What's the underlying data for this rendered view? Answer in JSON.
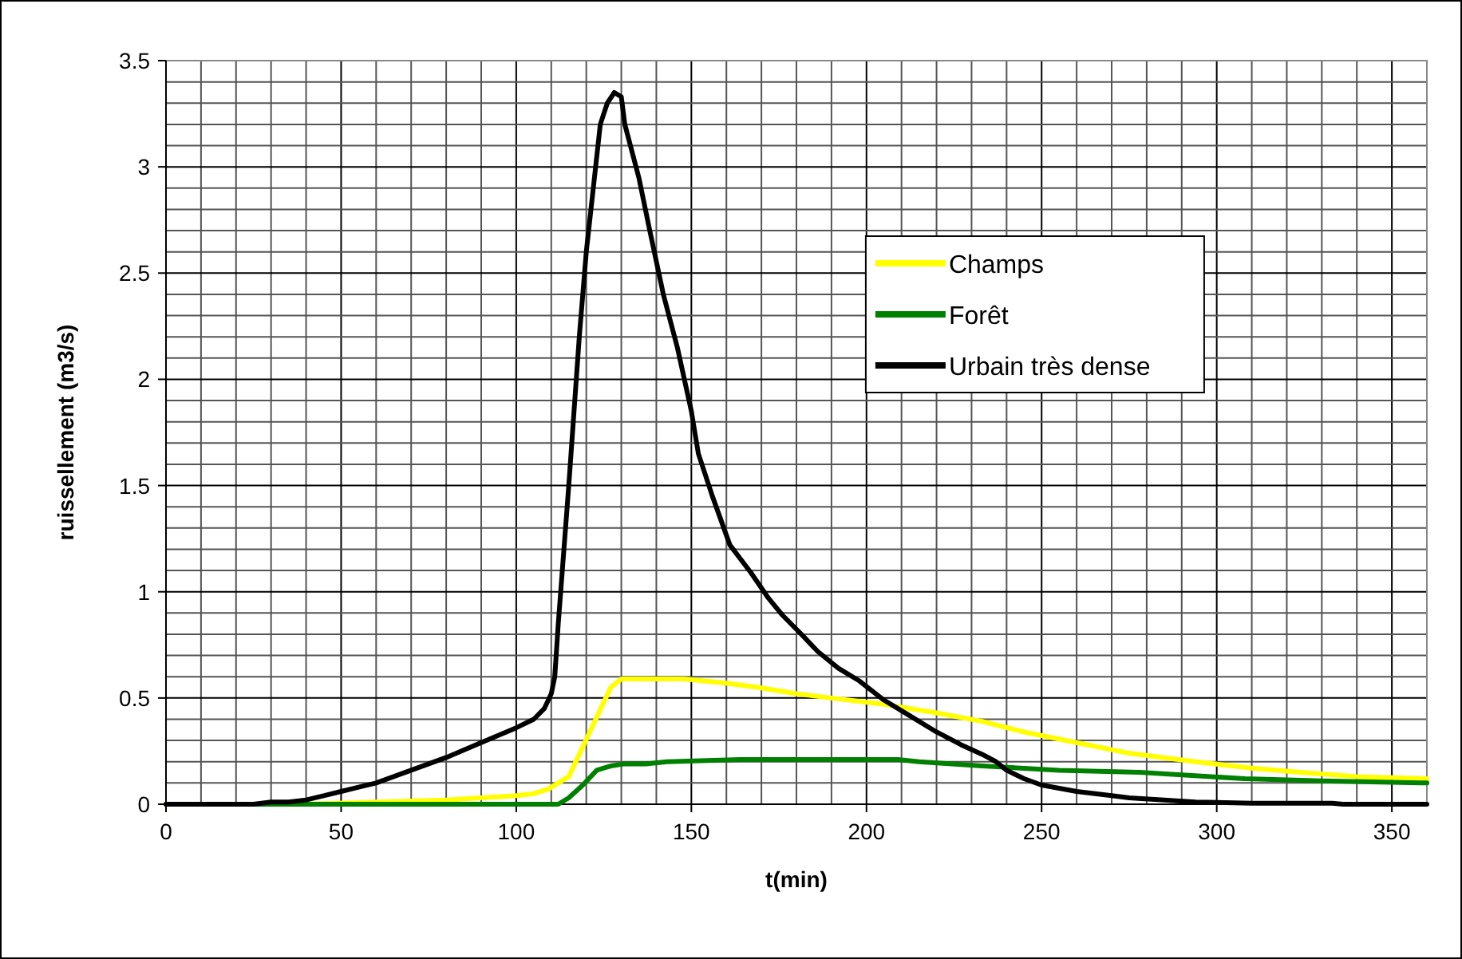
{
  "chart_data": {
    "type": "line",
    "xlabel": "t(min)",
    "ylabel": "ruissellement (m3/s)",
    "xlim": [
      0,
      360
    ],
    "ylim": [
      0,
      3.5
    ],
    "xticks": [
      0,
      {
        "value": 10,
        "label": null
      },
      {
        "value": 20,
        "label": null
      },
      {
        "value": 30,
        "label": null
      },
      {
        "value": 40,
        "label": null
      },
      50,
      {
        "value": 60,
        "label": null
      },
      {
        "value": 70,
        "label": null
      },
      {
        "value": 80,
        "label": null
      },
      {
        "value": 90,
        "label": null
      },
      100,
      {
        "value": 110,
        "label": null
      },
      {
        "value": 120,
        "label": null
      },
      {
        "value": 130,
        "label": null
      },
      {
        "value": 140,
        "label": null
      },
      150,
      {
        "value": 160,
        "label": null
      },
      {
        "value": 170,
        "label": null
      },
      {
        "value": 180,
        "label": null
      },
      {
        "value": 190,
        "label": null
      },
      200,
      {
        "value": 210,
        "label": null
      },
      {
        "value": 220,
        "label": null
      },
      {
        "value": 230,
        "label": null
      },
      {
        "value": 240,
        "label": null
      },
      250,
      {
        "value": 260,
        "label": null
      },
      {
        "value": 270,
        "label": null
      },
      {
        "value": 280,
        "label": null
      },
      {
        "value": 290,
        "label": null
      },
      300,
      {
        "value": 310,
        "label": null
      },
      {
        "value": 320,
        "label": null
      },
      {
        "value": 330,
        "label": null
      },
      {
        "value": 340,
        "label": null
      },
      350,
      {
        "value": 360,
        "label": null
      }
    ],
    "yticks": [
      0,
      {
        "value": 0.1,
        "label": null
      },
      {
        "value": 0.2,
        "label": null
      },
      {
        "value": 0.3,
        "label": null
      },
      {
        "value": 0.4,
        "label": null
      },
      0.5,
      {
        "value": 0.6,
        "label": null
      },
      {
        "value": 0.7,
        "label": null
      },
      {
        "value": 0.8,
        "label": null
      },
      {
        "value": 0.9,
        "label": null
      },
      1,
      {
        "value": 1.1,
        "label": null
      },
      {
        "value": 1.2,
        "label": null
      },
      {
        "value": 1.3,
        "label": null
      },
      {
        "value": 1.4,
        "label": null
      },
      1.5,
      {
        "value": 1.6,
        "label": null
      },
      {
        "value": 1.7,
        "label": null
      },
      {
        "value": 1.8,
        "label": null
      },
      {
        "value": 1.9,
        "label": null
      },
      2,
      {
        "value": 2.1,
        "label": null
      },
      {
        "value": 2.2,
        "label": null
      },
      {
        "value": 2.3,
        "label": null
      },
      {
        "value": 2.4,
        "label": null
      },
      2.5,
      {
        "value": 2.6,
        "label": null
      },
      {
        "value": 2.7,
        "label": null
      },
      {
        "value": 2.8,
        "label": null
      },
      {
        "value": 2.9,
        "label": null
      },
      3,
      {
        "value": 3.1,
        "label": null
      },
      {
        "value": 3.2,
        "label": null
      },
      {
        "value": 3.3,
        "label": null
      },
      {
        "value": 3.4,
        "label": null
      },
      3.5
    ],
    "grid": true,
    "legend": "right",
    "marker": "none",
    "line_style": "solid",
    "series": [
      {
        "name": "Champs",
        "color": "#ffff00",
        "x": [
          0,
          40,
          60,
          80,
          100,
          105,
          109,
          115,
          119,
          123,
          127,
          130,
          135,
          148,
          160,
          169,
          180,
          190,
          205,
          220,
          233,
          245,
          260,
          275,
          294,
          310,
          324,
          340,
          360
        ],
        "values": [
          0,
          0,
          0.01,
          0.02,
          0.04,
          0.05,
          0.07,
          0.13,
          0.27,
          0.41,
          0.55,
          0.59,
          0.59,
          0.59,
          0.57,
          0.55,
          0.52,
          0.5,
          0.47,
          0.43,
          0.39,
          0.34,
          0.29,
          0.24,
          0.2,
          0.17,
          0.15,
          0.13,
          0.12
        ]
      },
      {
        "name": "Forêt",
        "color": "#008000",
        "x": [
          0,
          112,
          115,
          119,
          123,
          127,
          131,
          137,
          143,
          164,
          180,
          209,
          215,
          233,
          255,
          278,
          308,
          330,
          360
        ],
        "values": [
          0,
          0,
          0.03,
          0.09,
          0.16,
          0.18,
          0.19,
          0.19,
          0.2,
          0.21,
          0.21,
          0.21,
          0.2,
          0.18,
          0.16,
          0.15,
          0.12,
          0.11,
          0.1
        ]
      },
      {
        "name": "Urbain très dense",
        "color": "#000000",
        "x": [
          0,
          25,
          30,
          35,
          40,
          45,
          50,
          55,
          60,
          65,
          70,
          75,
          80,
          90,
          100,
          105,
          108,
          110,
          111,
          112,
          115,
          118,
          120,
          122,
          124,
          126,
          128,
          130,
          131,
          135,
          138,
          142,
          146,
          150,
          152,
          156,
          161,
          167,
          172,
          176,
          182,
          186,
          192,
          198,
          205,
          212,
          220,
          227,
          233,
          237,
          240,
          245,
          250,
          260,
          270,
          275,
          285,
          294,
          310,
          333,
          336,
          360
        ],
        "values": [
          0,
          0,
          0.01,
          0.01,
          0.02,
          0.04,
          0.06,
          0.08,
          0.1,
          0.13,
          0.16,
          0.19,
          0.22,
          0.29,
          0.36,
          0.4,
          0.45,
          0.52,
          0.6,
          0.85,
          1.5,
          2.2,
          2.6,
          2.9,
          3.2,
          3.3,
          3.35,
          3.33,
          3.2,
          2.95,
          2.71,
          2.4,
          2.15,
          1.85,
          1.65,
          1.45,
          1.22,
          1.09,
          0.97,
          0.89,
          0.79,
          0.72,
          0.64,
          0.58,
          0.49,
          0.42,
          0.34,
          0.28,
          0.235,
          0.2,
          0.16,
          0.12,
          0.09,
          0.06,
          0.04,
          0.03,
          0.02,
          0.01,
          0.005,
          0.005,
          0,
          0
        ]
      }
    ]
  }
}
